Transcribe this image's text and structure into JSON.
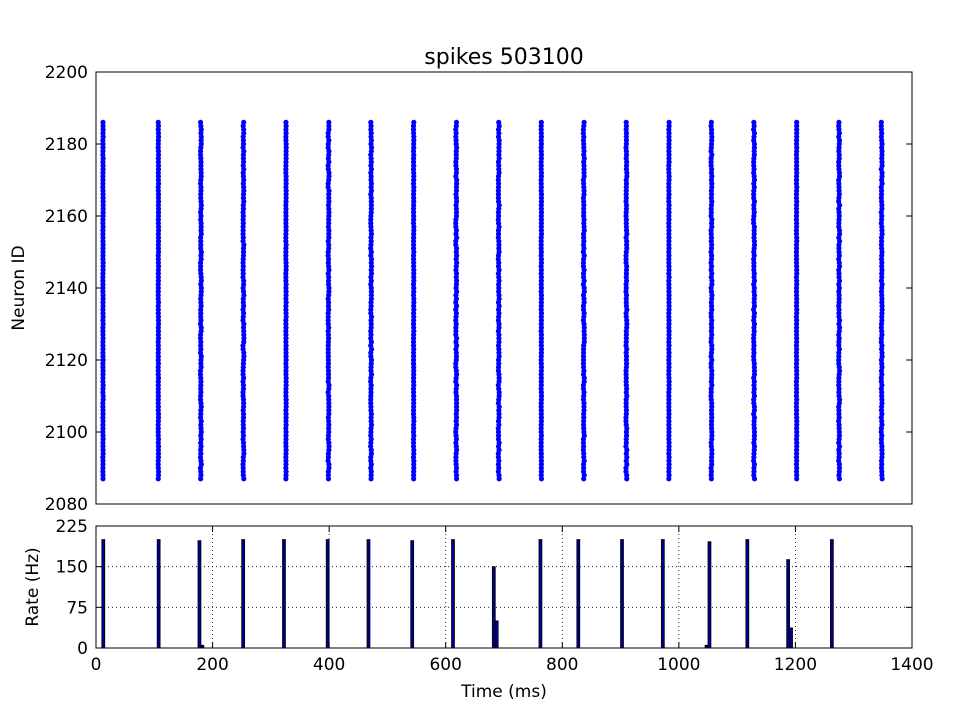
{
  "chart_data": [
    {
      "type": "scatter",
      "title": "spikes 503100",
      "xlabel": "",
      "ylabel": "Neuron ID",
      "xlim": [
        0,
        1400
      ],
      "ylim": [
        2080,
        2200
      ],
      "x_ticks": [],
      "y_ticks": [
        "2080",
        "2100",
        "2120",
        "2140",
        "2160",
        "2180",
        "2200"
      ],
      "grid": false,
      "marker_color": "#0000ff",
      "neuron_id_range": [
        2087,
        2186
      ],
      "spike_times": [
        12,
        107,
        180,
        253,
        326,
        399,
        472,
        545,
        618,
        691,
        764,
        837,
        910,
        983,
        1056,
        1129,
        1202,
        1275,
        1348
      ]
    },
    {
      "type": "bar",
      "title": "",
      "xlabel": "Time (ms)",
      "ylabel": "Rate (Hz)",
      "xlim": [
        0,
        1400
      ],
      "ylim": [
        0,
        225
      ],
      "x_ticks": [
        "0",
        "200",
        "400",
        "600",
        "800",
        "1000",
        "1200",
        "1400"
      ],
      "y_ticks": [
        "0",
        "75",
        "150",
        "225"
      ],
      "grid": true,
      "bin_width": 5,
      "bar_color": "#00008b",
      "x": [
        10,
        105,
        175,
        180,
        250,
        320,
        395,
        465,
        540,
        610,
        680,
        685,
        760,
        825,
        900,
        970,
        1045,
        1050,
        1115,
        1185,
        1190,
        1260
      ],
      "values": [
        200,
        200,
        198,
        5,
        200,
        200,
        200,
        200,
        198,
        200,
        150,
        50,
        200,
        200,
        200,
        200,
        5,
        196,
        200,
        163,
        37,
        200
      ]
    }
  ]
}
